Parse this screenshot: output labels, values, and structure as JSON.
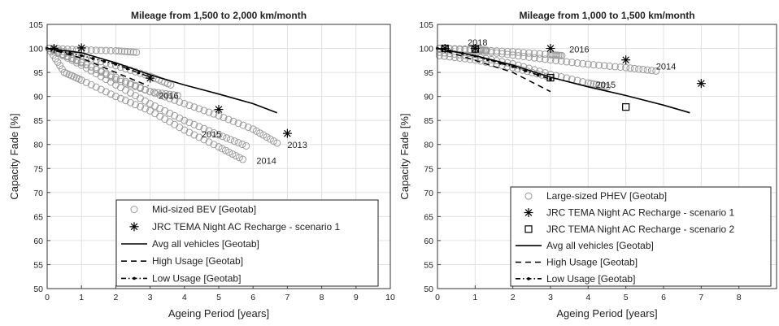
{
  "chart_data": [
    {
      "type": "scatter",
      "title": "Mileage from 1,500 to 2,000 km/month",
      "xlabel": "Ageing Period [years]",
      "ylabel": "Capacity Fade [%]",
      "xlim": [
        0,
        10
      ],
      "ylim": [
        50,
        105
      ],
      "xticks": [
        "0",
        "1",
        "2",
        "3",
        "4",
        "5",
        "6",
        "7",
        "8",
        "9",
        "10"
      ],
      "yticks": [
        "50",
        "55",
        "60",
        "65",
        "70",
        "75",
        "80",
        "85",
        "90",
        "95",
        "100",
        "105"
      ],
      "grid": true,
      "legend_position": "bottom-right",
      "colors": {
        "markers": "#9a9a9a",
        "lines": "#000000"
      },
      "annotations": [
        {
          "text": "2016",
          "x": 3.25,
          "y": 89.5
        },
        {
          "text": "2015",
          "x": 4.5,
          "y": 81.5
        },
        {
          "text": "2013",
          "x": 7.0,
          "y": 79.3
        },
        {
          "text": "2014",
          "x": 6.1,
          "y": 76.0
        }
      ],
      "series": [
        {
          "name": "Mid-sized BEV [Geotab]",
          "style": "circle",
          "trend_curves": [
            [
              [
                0.05,
                100
              ],
              [
                1.0,
                99.7
              ],
              [
                2.0,
                99.5
              ],
              [
                2.6,
                99.2
              ]
            ],
            [
              [
                0.05,
                100
              ],
              [
                1.0,
                98.4
              ],
              [
                2.0,
                96.4
              ],
              [
                3.0,
                94.2
              ],
              [
                3.6,
                92.4
              ]
            ],
            [
              [
                0.05,
                100
              ],
              [
                1.0,
                97.2
              ],
              [
                2.0,
                93.5
              ],
              [
                3.0,
                91.0
              ],
              [
                3.8,
                90.2
              ]
            ],
            [
              [
                0.05,
                100
              ],
              [
                1.0,
                97.0
              ],
              [
                2.0,
                94.0
              ],
              [
                3.0,
                91.0
              ],
              [
                4.0,
                88.5
              ],
              [
                5.0,
                86.0
              ],
              [
                6.0,
                83.2
              ],
              [
                6.7,
                80.3
              ]
            ],
            [
              [
                0.05,
                100
              ],
              [
                1.0,
                96.5
              ],
              [
                2.0,
                92.4
              ],
              [
                3.0,
                88.5
              ],
              [
                4.0,
                85.0
              ],
              [
                5.0,
                82.0
              ],
              [
                5.8,
                79.7
              ]
            ],
            [
              [
                0.05,
                100
              ],
              [
                0.5,
                95.0
              ],
              [
                1.0,
                93.4
              ],
              [
                2.0,
                90.0
              ],
              [
                3.0,
                87.0
              ],
              [
                4.0,
                83.0
              ],
              [
                5.0,
                79.5
              ],
              [
                5.7,
                76.9
              ]
            ]
          ]
        },
        {
          "name": "JRC TEMA Night AC Recharge - scenario 1",
          "style": "asterisk",
          "points": [
            [
              0.2,
              100
            ],
            [
              1,
              100.1
            ],
            [
              3,
              93.8
            ],
            [
              5,
              87.3
            ],
            [
              7,
              82.3
            ]
          ]
        },
        {
          "name": "Avg all vehicles [Geotab]",
          "style": "solid",
          "points": [
            [
              0,
              100
            ],
            [
              1,
              99.1
            ],
            [
              2,
              97.0
            ],
            [
              3,
              94.5
            ],
            [
              4,
              92.4
            ],
            [
              5,
              90.5
            ],
            [
              6,
              88.5
            ],
            [
              6.7,
              86.6
            ]
          ]
        },
        {
          "name": "High Usage [Geotab]",
          "style": "dashed",
          "points": [
            [
              0,
              100
            ],
            [
              1,
              98.0
            ],
            [
              2,
              95.0
            ],
            [
              2.95,
              92.2
            ]
          ]
        },
        {
          "name": "Low Usage [Geotab]",
          "style": "dashdot",
          "points": [
            [
              0,
              100
            ],
            [
              1,
              98.5
            ],
            [
              2,
              96.7
            ],
            [
              3,
              94.0
            ]
          ]
        }
      ]
    },
    {
      "type": "scatter",
      "title": "Mileage from 1,000 to 1,500 km/month",
      "xlabel": "Ageing Period [years]",
      "ylabel": "Capacity Fade [%]",
      "xlim": [
        0,
        9
      ],
      "ylim": [
        50,
        105
      ],
      "xticks": [
        "0",
        "1",
        "2",
        "3",
        "4",
        "5",
        "6",
        "7",
        "8"
      ],
      "yticks": [
        "50",
        "55",
        "60",
        "65",
        "70",
        "75",
        "80",
        "85",
        "90",
        "95",
        "100",
        "105"
      ],
      "grid": true,
      "legend_position": "bottom-left",
      "colors": {
        "markers": "#9a9a9a",
        "lines": "#000000"
      },
      "annotations": [
        {
          "text": "2018",
          "x": 0.8,
          "y": 100.6
        },
        {
          "text": "2016",
          "x": 3.5,
          "y": 99.2
        },
        {
          "text": "2014",
          "x": 5.8,
          "y": 95.6
        },
        {
          "text": "2015",
          "x": 4.2,
          "y": 91.8
        }
      ],
      "series": [
        {
          "name": "Large-sized PHEV [Geotab]",
          "style": "circle",
          "trend_curves": [
            [
              [
                0.05,
                100
              ],
              [
                1.0,
                99.8
              ],
              [
                1.3,
                99.6
              ]
            ],
            [
              [
                0.05,
                100
              ],
              [
                1.0,
                99.7
              ],
              [
                2.0,
                99.3
              ],
              [
                3.0,
                98.7
              ],
              [
                3.3,
                98.5
              ]
            ],
            [
              [
                0.05,
                100
              ],
              [
                1.0,
                99.6
              ],
              [
                2.0,
                98.6
              ],
              [
                3.0,
                97.6
              ],
              [
                4.0,
                96.7
              ],
              [
                5.0,
                96.0
              ],
              [
                5.8,
                95.3
              ]
            ],
            [
              [
                0.05,
                99.2
              ],
              [
                1.0,
                98.3
              ],
              [
                2.0,
                96.8
              ],
              [
                3.0,
                94.6
              ],
              [
                4.0,
                92.8
              ],
              [
                4.5,
                92.0
              ]
            ],
            [
              [
                0.05,
                98.5
              ],
              [
                1.0,
                97.6
              ],
              [
                2.0,
                96.0
              ],
              [
                2.9,
                94.2
              ]
            ]
          ]
        },
        {
          "name": "JRC TEMA Night AC Recharge - scenario 1",
          "style": "asterisk",
          "points": [
            [
              0.2,
              100
            ],
            [
              1,
              100
            ],
            [
              3,
              100
            ],
            [
              5,
              97.6
            ],
            [
              7,
              92.7
            ]
          ]
        },
        {
          "name": "JRC TEMA Night AC Recharge - scenario 2",
          "style": "square",
          "points": [
            [
              0.2,
              100
            ],
            [
              1,
              99.9
            ],
            [
              3,
              93.9
            ],
            [
              5,
              87.8
            ]
          ]
        },
        {
          "name": "Avg all vehicles [Geotab]",
          "style": "solid",
          "points": [
            [
              0,
              100
            ],
            [
              1,
              98.5
            ],
            [
              2,
              96.5
            ],
            [
              3,
              94.0
            ],
            [
              4,
              92.0
            ],
            [
              5,
              90.2
            ],
            [
              6,
              88.2
            ],
            [
              6.7,
              86.6
            ]
          ]
        },
        {
          "name": "High Usage [Geotab]",
          "style": "dashed",
          "points": [
            [
              0,
              100
            ],
            [
              1,
              97.5
            ],
            [
              2,
              95.0
            ],
            [
              3,
              91.0
            ]
          ]
        },
        {
          "name": "Low Usage [Geotab]",
          "style": "dashdot",
          "points": [
            [
              0,
              100
            ],
            [
              1,
              98.4
            ],
            [
              2,
              96.2
            ],
            [
              3,
              93.6
            ]
          ]
        }
      ]
    }
  ]
}
